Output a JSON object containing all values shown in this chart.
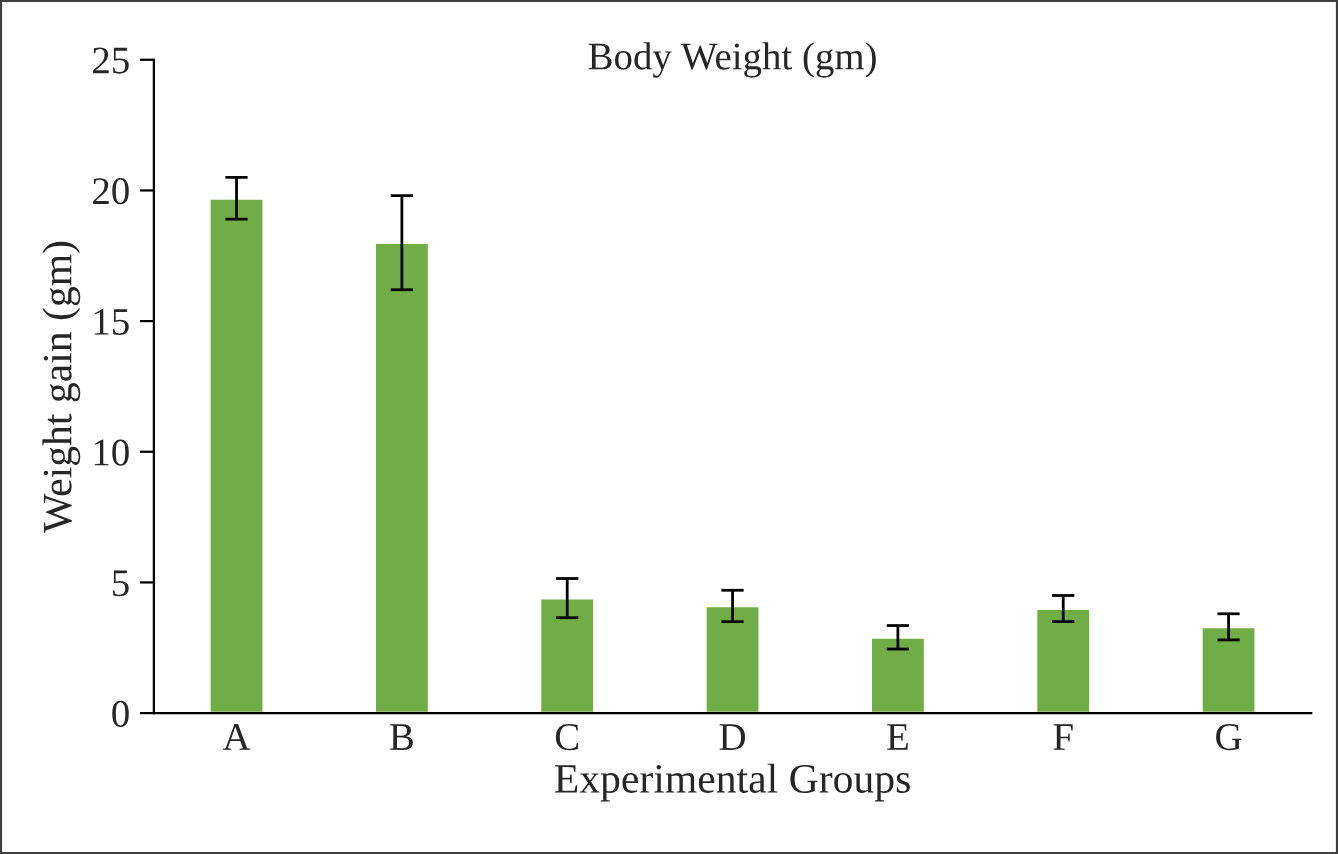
{
  "chart_data": {
    "type": "bar",
    "title": "Body Weight (gm)",
    "xlabel": "Experimental Groups",
    "ylabel": "Weight gain (gm)",
    "categories": [
      "A",
      "B",
      "C",
      "D",
      "E",
      "F",
      "G"
    ],
    "values": [
      19.7,
      18.0,
      4.4,
      4.1,
      2.9,
      4.0,
      3.3
    ],
    "errors": [
      0.8,
      1.8,
      0.75,
      0.6,
      0.45,
      0.5,
      0.5
    ],
    "color": "#70ad47",
    "ylim": [
      0,
      25
    ],
    "yticks": [
      0,
      5,
      10,
      15,
      20,
      25
    ],
    "grid": false
  }
}
